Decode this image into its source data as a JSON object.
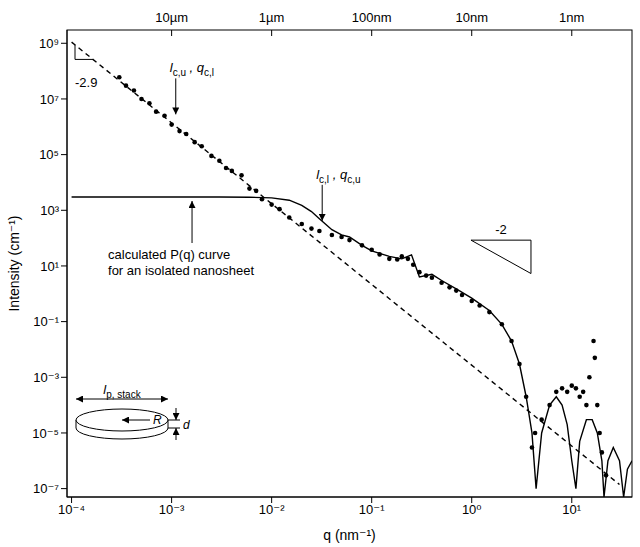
{
  "chart_data": {
    "type": "scatter",
    "x_label": "q (nm⁻¹)",
    "y_label": "Intensity (cm⁻¹)",
    "log": true,
    "grid": false,
    "xlim": [
      9e-05,
      40
    ],
    "ylim": [
      5e-08,
      3000000000.0
    ],
    "xticks": [
      {
        "value": 0.0001,
        "label": "10⁻⁴"
      },
      {
        "value": 0.001,
        "label": "10⁻³"
      },
      {
        "value": 0.01,
        "label": "10⁻²"
      },
      {
        "value": 0.1,
        "label": "10⁻¹"
      },
      {
        "value": 1,
        "label": "10⁰"
      },
      {
        "value": 10,
        "label": "10¹"
      }
    ],
    "x2lim": [
      9e-05,
      40
    ],
    "x2ticks": [
      {
        "value": 0.001,
        "label": "10µm"
      },
      {
        "value": 0.01,
        "label": "1µm"
      },
      {
        "value": 0.1,
        "label": "100nm"
      },
      {
        "value": 1,
        "label": "10nm"
      },
      {
        "value": 10,
        "label": "1nm"
      }
    ],
    "yticks": [
      {
        "value": 1e-07,
        "label": "10⁻⁷"
      },
      {
        "value": 1e-05,
        "label": "10⁻⁵"
      },
      {
        "value": 0.001,
        "label": "10⁻³"
      },
      {
        "value": 0.1,
        "label": "10⁻¹"
      },
      {
        "value": 10,
        "label": "10¹"
      },
      {
        "value": 1000,
        "label": "10³"
      },
      {
        "value": 100000,
        "label": "10⁵"
      },
      {
        "value": 10000000,
        "label": "10⁷"
      },
      {
        "value": 1000000000,
        "label": "10⁹"
      }
    ],
    "series": [
      {
        "type": "scatter",
        "marker": "circle",
        "color": "#000000",
        "x": [
          0.0003,
          0.00035,
          0.00042,
          0.0005,
          0.0006,
          0.0007,
          0.00085,
          0.001,
          0.0012,
          0.0014,
          0.0017,
          0.002,
          0.0025,
          0.003,
          0.0035,
          0.004,
          0.005,
          0.006,
          0.007,
          0.008,
          0.01,
          0.012,
          0.015,
          0.02,
          0.025,
          0.03,
          0.04,
          0.05,
          0.06,
          0.08,
          0.1,
          0.12,
          0.15,
          0.18,
          0.2,
          0.23,
          0.26,
          0.3,
          0.35,
          0.4,
          0.5,
          0.6,
          0.7,
          0.8,
          1,
          1.2,
          1.5,
          2,
          2.5,
          3,
          3.5,
          4,
          4.3,
          5,
          6,
          7,
          8,
          9,
          10,
          11,
          12,
          13,
          14,
          15,
          16.5,
          17,
          18,
          19,
          20,
          22
        ],
        "values": [
          60000000.0,
          30000000.0,
          20000000.0,
          10000000.0,
          7000000.0,
          3500000.0,
          2500000.0,
          1200000.0,
          700000.0,
          550000.0,
          280000.0,
          200000.0,
          90000.0,
          60000.0,
          33000.0,
          26000.0,
          18000.0,
          6000,
          5000,
          2500,
          1600,
          1100,
          550,
          320,
          220,
          180,
          130,
          110,
          85,
          55,
          38,
          26,
          18,
          17,
          22,
          18,
          11,
          6,
          4.5,
          3.8,
          2.5,
          1.7,
          1.3,
          0.9,
          0.55,
          0.38,
          0.22,
          0.08,
          0.02,
          0.003,
          0.0002,
          3e-06,
          1e-05,
          3e-05,
          0.0001,
          0.0003,
          0.0004,
          0.0003,
          0.0005,
          0.0004,
          0.0002,
          0.0003,
          0.0001,
          0.001,
          0.02,
          0.005,
          0.0001,
          1e-05,
          2e-06,
          3e-07
        ]
      },
      {
        "type": "line",
        "line_style": "dashed",
        "color": "#000000",
        "x": [
          0.0001,
          30
        ],
        "values": [
          1100000000.0,
          1.4e-07
        ]
      },
      {
        "type": "line",
        "line_style": "solid",
        "color": "#000000",
        "x": [
          0.0001,
          0.001,
          0.003,
          0.006,
          0.01,
          0.015,
          0.02,
          0.025,
          0.03,
          0.04,
          0.05,
          0.06,
          0.08,
          0.1,
          0.15,
          0.2,
          0.25,
          0.3,
          0.4,
          0.5,
          0.7,
          1,
          1.5,
          2,
          2.5,
          3,
          3.5,
          4,
          4.4,
          5,
          6,
          7,
          8,
          9,
          10,
          11,
          12,
          14,
          16,
          18,
          20,
          21,
          23,
          26,
          30,
          33,
          36,
          40
        ],
        "values": [
          3000,
          3000,
          3000,
          2950,
          2800,
          2300,
          1500,
          900,
          500,
          200,
          130,
          110,
          55,
          35,
          22,
          18,
          25,
          4,
          5,
          3,
          1.5,
          0.7,
          0.25,
          0.08,
          0.02,
          0.003,
          0.0002,
          1e-05,
          1e-07,
          1e-05,
          0.0001,
          0.0002,
          0.0001,
          2e-05,
          1e-06,
          1e-07,
          5e-06,
          3e-05,
          3e-05,
          1e-05,
          1e-06,
          5e-08,
          1e-06,
          3e-06,
          1e-06,
          5e-08,
          5e-07,
          1e-06
        ]
      }
    ],
    "annotations": [
      {
        "segments": [
          [
            "l",
            "c,u"
          ],
          [
            " , q",
            "c,l"
          ]
        ],
        "x": 0.0011,
        "y": 2000000.0
      },
      {
        "segments": [
          [
            "l",
            "c,l"
          ],
          [
            " , q",
            "c,u"
          ]
        ],
        "x": 0.032,
        "y": 300
      },
      {
        "text": [
          "calculated P(q) curve",
          "for an isolated nanosheet"
        ],
        "x": 0.0016,
        "y": 3000
      }
    ],
    "slopes": [
      -2.9,
      -2
    ],
    "inset": {
      "width_segments": [
        [
          "l",
          "p, stack"
        ]
      ],
      "radius_label": "R",
      "thickness_label": "d"
    }
  }
}
